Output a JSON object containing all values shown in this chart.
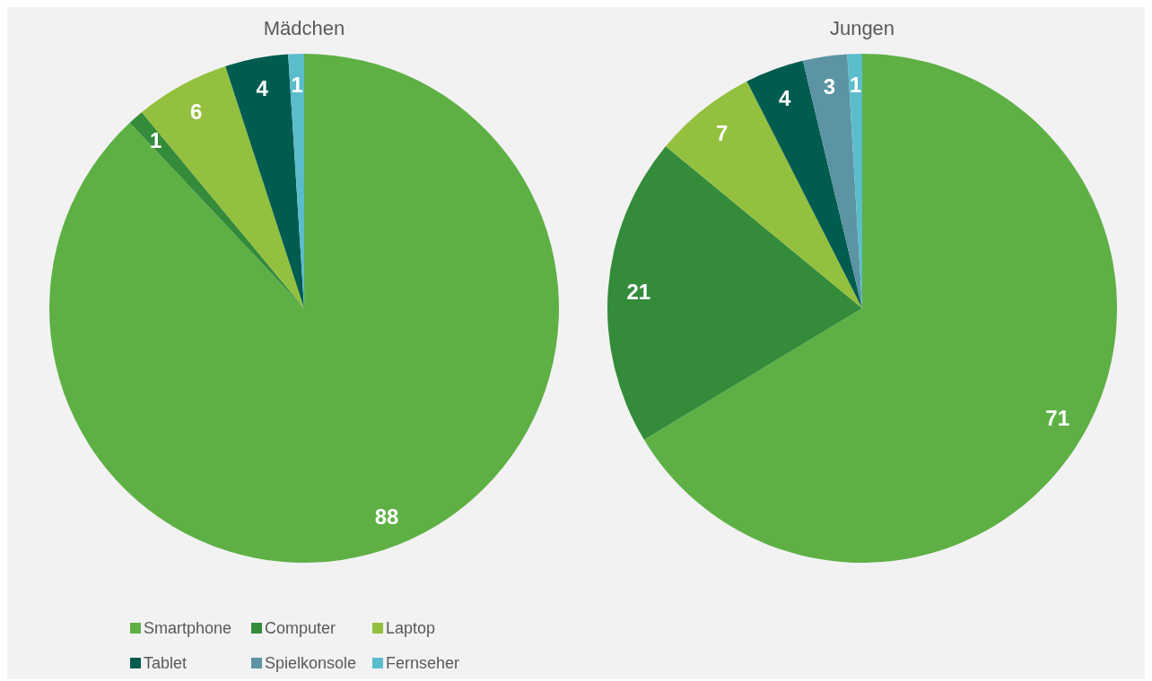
{
  "chart_data": [
    {
      "type": "pie",
      "title": "Mädchen",
      "categories": [
        "Smartphone",
        "Computer",
        "Laptop",
        "Tablet",
        "Spielkonsole",
        "Fernseher"
      ],
      "values": [
        88,
        1,
        6,
        4,
        null,
        1
      ],
      "colors": [
        "#5eb045",
        "#348b3a",
        "#93c03e",
        "#005c4e",
        "#5c94a4",
        "#5bbccc"
      ],
      "data_labels": true,
      "legend": "bottom"
    },
    {
      "type": "pie",
      "title": "Jungen",
      "categories": [
        null,
        null,
        null,
        null,
        null,
        null
      ],
      "values": [
        71,
        21,
        7,
        4,
        3,
        1
      ],
      "colors": [
        "#5eb045",
        "#348b3a",
        "#93c03e",
        "#005c4e",
        "#5c94a4",
        "#5bbccc"
      ],
      "data_labels": true
    }
  ]
}
